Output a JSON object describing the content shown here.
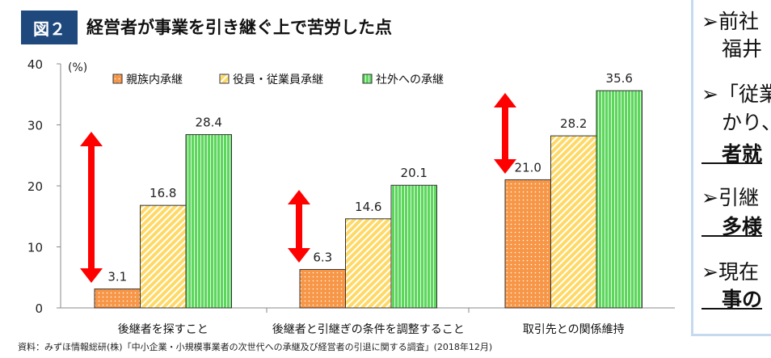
{
  "figure_label": "図２",
  "title": "経営者が事業を引き継ぐ上で苦労した点",
  "source": "資料：みずほ情報総研(株)「中小企業・小規模事業者の次世代への承継及び経営者の引退に関する調査」(2018年12月)",
  "side_panel": {
    "lines": [
      {
        "text": "➢前社",
        "bold": false
      },
      {
        "text": "　福井",
        "bold": false
      },
      {
        "text": "➢「従業",
        "bold": false
      },
      {
        "text": "　かり、",
        "bold": false
      },
      {
        "text": "　者就",
        "bold": true
      },
      {
        "text": "➢引継",
        "bold": false
      },
      {
        "text": "　多様",
        "bold": true
      },
      {
        "text": "➢現在",
        "bold": false
      },
      {
        "text": "　事の",
        "bold": true
      }
    ]
  },
  "chart_data": {
    "type": "bar",
    "title": "経営者が事業を引き継ぐ上で苦労した点",
    "ylabel": "(%)",
    "ylim": [
      0,
      40
    ],
    "yticks": [
      0,
      10,
      20,
      30,
      40
    ],
    "legend_position": "top",
    "categories": [
      "後継者を探すこと",
      "後継者と引継ぎの条件を調整すること",
      "取引先との関係維持"
    ],
    "series": [
      {
        "name": "親族内承継",
        "color": "#f79646",
        "values": [
          3.1,
          6.3,
          21.0
        ]
      },
      {
        "name": "役員・従業員承継",
        "color": "#ffd966",
        "values": [
          16.8,
          14.6,
          28.2
        ]
      },
      {
        "name": "社外への承継",
        "color": "#5cd65c",
        "values": [
          28.4,
          20.1,
          35.6
        ]
      }
    ],
    "annotations": [
      {
        "type": "double-arrow",
        "category": "後継者を探すこと"
      },
      {
        "type": "double-arrow",
        "category": "後継者と引継ぎの条件を調整すること"
      },
      {
        "type": "double-arrow",
        "category": "取引先との関係維持"
      }
    ]
  }
}
